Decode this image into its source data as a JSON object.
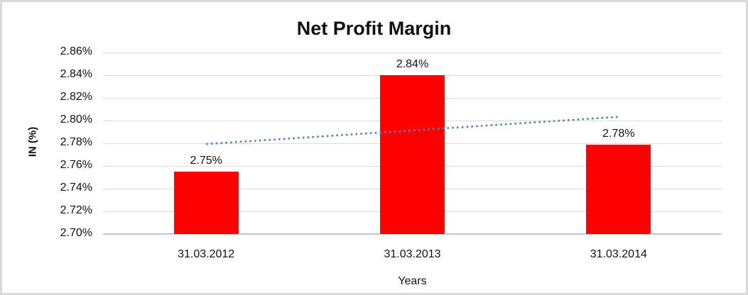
{
  "chart_data": {
    "type": "bar",
    "title": "Net Profit Margin",
    "xlabel": "Years",
    "ylabel": "IN (%)",
    "categories": [
      "31.03.2012",
      "31.03.2013",
      "31.03.2014"
    ],
    "values": [
      2.755,
      2.84,
      2.779
    ],
    "data_labels": [
      "2.75%",
      "2.84%",
      "2.78%"
    ],
    "ylim": [
      2.7,
      2.86
    ],
    "y_tick_step": 0.02,
    "y_tick_labels": [
      "2.70%",
      "2.72%",
      "2.74%",
      "2.76%",
      "2.78%",
      "2.80%",
      "2.82%",
      "2.84%",
      "2.86%"
    ],
    "grid": true,
    "legend": "none",
    "bar_color": "#FF0000",
    "gridline_color": "#D9D9D9",
    "axis_line_color": "#C6C6C6",
    "trendline": {
      "type": "linear",
      "style": "dotted",
      "color": "#4F81BD",
      "start_value": 2.7793,
      "end_value": 2.8033
    }
  }
}
